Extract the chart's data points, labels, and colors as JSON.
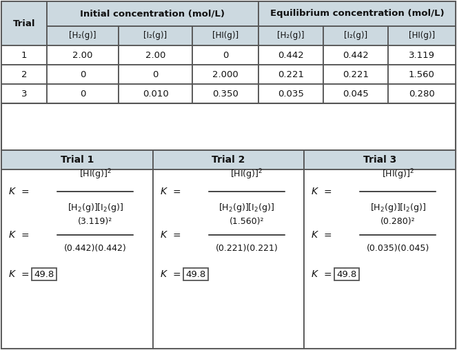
{
  "header_bg": "#ccd9e0",
  "white_bg": "#ffffff",
  "border_color": "#555555",
  "text_color": "#111111",
  "fig_w": 6.63,
  "fig_h": 5.08,
  "dpi": 100,
  "top_table": {
    "trial_col": "Trial",
    "initial_header": "Initial concentration (mol/L)",
    "equilibrium_header": "Equilibrium concentration (mol/L)",
    "sub_headers": [
      "[H₂(g)]",
      "[I₂(g)]",
      "[HI(g)]",
      "[H₂(g)]",
      "[I₂(g)]",
      "[HI(g)]"
    ],
    "rows": [
      [
        "1",
        "2.00",
        "2.00",
        "0",
        "0.442",
        "0.442",
        "3.119"
      ],
      [
        "2",
        "0",
        "0",
        "2.000",
        "0.221",
        "0.221",
        "1.560"
      ],
      [
        "3",
        "0",
        "0.010",
        "0.350",
        "0.035",
        "0.045",
        "0.280"
      ]
    ]
  },
  "bottom_table": {
    "trial_headers": [
      "Trial 1",
      "Trial 2",
      "Trial 3"
    ],
    "trials": [
      {
        "num_sym": "(3.119)²",
        "den_sym": "(0.442)(0.442)",
        "result": "49.8"
      },
      {
        "num_sym": "(1.560)²",
        "den_sym": "(0.221)(0.221)",
        "result": "49.8"
      },
      {
        "num_sym": "(0.280)²",
        "den_sym": "(0.035)(0.045)",
        "result": "49.8"
      }
    ]
  }
}
